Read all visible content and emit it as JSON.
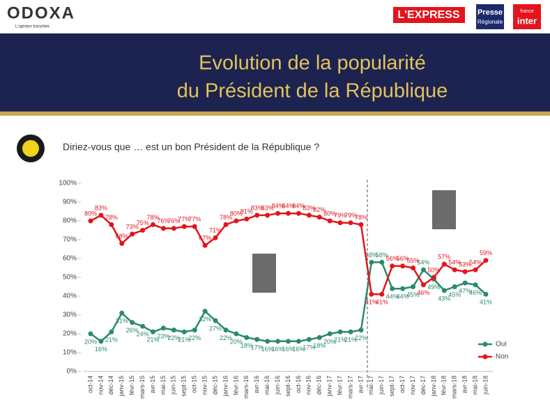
{
  "header": {
    "brand": "ODOXA",
    "tagline": "L'opinion tranchée",
    "partner1": "L'EXPRESS",
    "partner2a": "Presse",
    "partner2b": "Régionale",
    "partner3a": "france",
    "partner3b": "inter"
  },
  "banner": {
    "line1": "Evolution de la popularité",
    "line2": "du Président de la République"
  },
  "chart_data": {
    "type": "line",
    "title": "Diriez-vous que … est un bon Président de la République ?",
    "categories": [
      "oct-14",
      "nov-14",
      "déc-14",
      "janv-15",
      "févr-15",
      "mars-15",
      "avr-15",
      "mai-15",
      "juin-15",
      "sept-15",
      "oct-15",
      "nov-15",
      "déc-15",
      "janv-16",
      "févr-16",
      "mars-16",
      "avr-16",
      "mai-16",
      "juin-16",
      "sept-16",
      "oct-16",
      "nov-16",
      "déc-16",
      "janv-17",
      "févr-17",
      "mars-17",
      "avr-17",
      "mai-17",
      "juin-17",
      "sept-17",
      "oct-17",
      "nov-17",
      "déc-17",
      "janv-18",
      "févr-18",
      "mars-18",
      "avr-18",
      "mai-18",
      "juin-18"
    ],
    "series": [
      {
        "name": "Oui",
        "color": "#2a8a6a",
        "values": [
          20,
          16,
          21,
          31,
          26,
          24,
          21,
          23,
          22,
          21,
          22,
          32,
          27,
          22,
          20,
          18,
          17,
          16,
          16,
          16,
          16,
          17,
          18,
          20,
          21,
          21,
          22,
          58,
          58,
          44,
          44,
          45,
          54,
          49,
          43,
          45,
          47,
          46,
          41
        ],
        "value_labels": [
          "20%",
          "16%",
          "21%",
          "31%",
          "26%",
          "24%",
          "21%",
          "23%",
          "22%",
          "21%",
          "22%",
          "32%",
          "27%",
          "22%",
          "20%",
          "18%",
          "17%",
          "16%",
          "16%",
          "16%",
          "16%",
          "17%",
          "18%",
          "20%",
          "21%",
          "21%",
          "22%",
          "58%",
          "58%",
          "44%",
          "44%",
          "45%",
          "54%",
          "49%",
          "43%",
          "45%",
          "47%",
          "46%",
          "41%"
        ]
      },
      {
        "name": "Non",
        "color": "#e3141c",
        "values": [
          80,
          83,
          78,
          68,
          73,
          75,
          78,
          76,
          76,
          77,
          77,
          67,
          71,
          78,
          80,
          81,
          83,
          83,
          84,
          84,
          84,
          83,
          82,
          80,
          79,
          79,
          78,
          41,
          41,
          56,
          56,
          55,
          46,
          50,
          57,
          54,
          53,
          54,
          59
        ],
        "value_labels": [
          "80%",
          "83%",
          "78%",
          "68%",
          "73%",
          "75%",
          "78%",
          "76%",
          "76%",
          "77%",
          "77%",
          "67%",
          "71%",
          "78%",
          "80%",
          "81%",
          "83%",
          "83%",
          "84%",
          "84%",
          "84%",
          "83%",
          "82%",
          "80%",
          "79%",
          "79%",
          "78%",
          "41%",
          "41%",
          "56%",
          "56%",
          "55%",
          "46%",
          "50%",
          "57%",
          "54%",
          "53%",
          "54%",
          "59%"
        ]
      }
    ],
    "ylim": [
      0,
      100
    ],
    "yticks": [
      {
        "value": 0,
        "label": "0%"
      },
      {
        "value": 10,
        "label": "10%"
      },
      {
        "value": 20,
        "label": "20%"
      },
      {
        "value": 30,
        "label": "30%"
      },
      {
        "value": 40,
        "label": "40%"
      },
      {
        "value": 50,
        "label": "50%"
      },
      {
        "value": 60,
        "label": "60%"
      },
      {
        "value": 70,
        "label": "70%"
      },
      {
        "value": 80,
        "label": "80%"
      },
      {
        "value": 90,
        "label": "90%"
      },
      {
        "value": 100,
        "label": "100%"
      }
    ],
    "legend": "lower right"
  }
}
